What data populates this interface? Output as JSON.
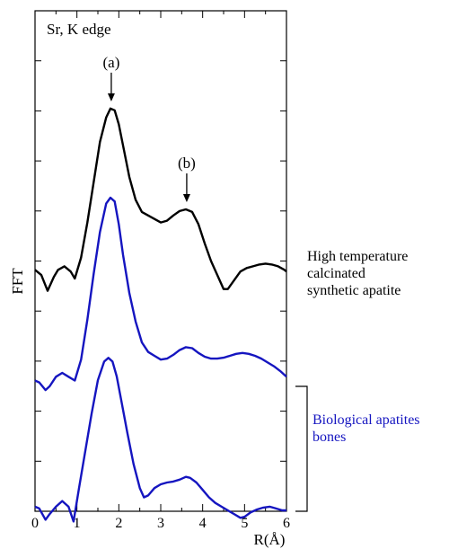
{
  "chart_data": {
    "type": "line",
    "title": "",
    "xlabel": "R(Å)",
    "ylabel": "FFT",
    "xlim": [
      0,
      6
    ],
    "xticks": [
      "0",
      "1",
      "2",
      "3",
      "4",
      "5",
      "6"
    ],
    "y_tick_count": 10,
    "y_values_shown": false,
    "grid": false,
    "panel_label": "Sr, K edge",
    "peak_annotations": [
      {
        "label": "(a)",
        "x": 1.82,
        "target_series": 0
      },
      {
        "label": "(b)",
        "x": 3.62,
        "target_series": 0
      }
    ],
    "series_labels": [
      {
        "text_lines": [
          "High temperature",
          "calcinated",
          "synthetic apatite"
        ],
        "color": "#000000",
        "series": [
          0
        ]
      },
      {
        "text_lines": [
          "Biological apatites",
          "bones"
        ],
        "color": "#1515c0",
        "series": [
          1,
          2
        ],
        "bracket": true
      }
    ],
    "series": [
      {
        "color": "#000000",
        "points": [
          [
            0,
            0.05
          ],
          [
            0.15,
            0.02
          ],
          [
            0.3,
            -0.07
          ],
          [
            0.45,
            0.01
          ],
          [
            0.55,
            0.05
          ],
          [
            0.7,
            0.07
          ],
          [
            0.85,
            0.04
          ],
          [
            0.95,
            0.0
          ],
          [
            1.1,
            0.12
          ],
          [
            1.25,
            0.32
          ],
          [
            1.4,
            0.55
          ],
          [
            1.55,
            0.78
          ],
          [
            1.7,
            0.92
          ],
          [
            1.8,
            0.97
          ],
          [
            1.9,
            0.96
          ],
          [
            2.0,
            0.88
          ],
          [
            2.1,
            0.76
          ],
          [
            2.25,
            0.58
          ],
          [
            2.4,
            0.45
          ],
          [
            2.55,
            0.38
          ],
          [
            2.7,
            0.36
          ],
          [
            2.85,
            0.34
          ],
          [
            3.0,
            0.32
          ],
          [
            3.15,
            0.33
          ],
          [
            3.3,
            0.36
          ],
          [
            3.45,
            0.385
          ],
          [
            3.6,
            0.395
          ],
          [
            3.75,
            0.38
          ],
          [
            3.9,
            0.31
          ],
          [
            4.05,
            0.2
          ],
          [
            4.2,
            0.1
          ],
          [
            4.35,
            0.02
          ],
          [
            4.5,
            -0.06
          ],
          [
            4.6,
            -0.06
          ],
          [
            4.75,
            -0.01
          ],
          [
            4.9,
            0.04
          ],
          [
            5.05,
            0.06
          ],
          [
            5.2,
            0.07
          ],
          [
            5.35,
            0.08
          ],
          [
            5.5,
            0.085
          ],
          [
            5.65,
            0.08
          ],
          [
            5.8,
            0.07
          ],
          [
            5.95,
            0.05
          ],
          [
            6.0,
            0.04
          ]
        ]
      },
      {
        "color": "#1515c0",
        "points": [
          [
            0,
            0.04
          ],
          [
            0.1,
            0.03
          ],
          [
            0.25,
            -0.01
          ],
          [
            0.35,
            0.01
          ],
          [
            0.5,
            0.06
          ],
          [
            0.65,
            0.08
          ],
          [
            0.8,
            0.06
          ],
          [
            0.95,
            0.04
          ],
          [
            1.1,
            0.15
          ],
          [
            1.25,
            0.36
          ],
          [
            1.4,
            0.6
          ],
          [
            1.55,
            0.82
          ],
          [
            1.7,
            0.97
          ],
          [
            1.8,
            1.0
          ],
          [
            1.9,
            0.98
          ],
          [
            2.0,
            0.86
          ],
          [
            2.1,
            0.7
          ],
          [
            2.25,
            0.5
          ],
          [
            2.4,
            0.35
          ],
          [
            2.55,
            0.24
          ],
          [
            2.7,
            0.19
          ],
          [
            2.85,
            0.17
          ],
          [
            3.0,
            0.15
          ],
          [
            3.15,
            0.155
          ],
          [
            3.3,
            0.175
          ],
          [
            3.45,
            0.2
          ],
          [
            3.6,
            0.215
          ],
          [
            3.75,
            0.21
          ],
          [
            3.9,
            0.185
          ],
          [
            4.05,
            0.165
          ],
          [
            4.2,
            0.155
          ],
          [
            4.35,
            0.155
          ],
          [
            4.5,
            0.16
          ],
          [
            4.65,
            0.17
          ],
          [
            4.8,
            0.18
          ],
          [
            4.95,
            0.185
          ],
          [
            5.1,
            0.18
          ],
          [
            5.25,
            0.17
          ],
          [
            5.4,
            0.155
          ],
          [
            5.55,
            0.135
          ],
          [
            5.7,
            0.115
          ],
          [
            5.85,
            0.09
          ],
          [
            6.0,
            0.06
          ]
        ]
      },
      {
        "color": "#1515c0",
        "points": [
          [
            0,
            0.02
          ],
          [
            0.1,
            0.01
          ],
          [
            0.25,
            -0.05
          ],
          [
            0.35,
            -0.02
          ],
          [
            0.5,
            0.02
          ],
          [
            0.65,
            0.05
          ],
          [
            0.8,
            0.02
          ],
          [
            0.92,
            -0.06
          ],
          [
            1.05,
            0.12
          ],
          [
            1.2,
            0.32
          ],
          [
            1.35,
            0.52
          ],
          [
            1.5,
            0.7
          ],
          [
            1.65,
            0.8
          ],
          [
            1.75,
            0.82
          ],
          [
            1.85,
            0.8
          ],
          [
            1.95,
            0.72
          ],
          [
            2.05,
            0.6
          ],
          [
            2.2,
            0.42
          ],
          [
            2.35,
            0.25
          ],
          [
            2.5,
            0.12
          ],
          [
            2.6,
            0.07
          ],
          [
            2.7,
            0.08
          ],
          [
            2.85,
            0.12
          ],
          [
            3.0,
            0.14
          ],
          [
            3.15,
            0.15
          ],
          [
            3.3,
            0.155
          ],
          [
            3.45,
            0.165
          ],
          [
            3.6,
            0.18
          ],
          [
            3.7,
            0.175
          ],
          [
            3.85,
            0.15
          ],
          [
            4.0,
            0.11
          ],
          [
            4.15,
            0.07
          ],
          [
            4.3,
            0.04
          ],
          [
            4.45,
            0.02
          ],
          [
            4.6,
            0.0
          ],
          [
            4.75,
            -0.02
          ],
          [
            4.9,
            -0.04
          ],
          [
            5.0,
            -0.035
          ],
          [
            5.15,
            -0.01
          ],
          [
            5.3,
            0.005
          ],
          [
            5.45,
            0.015
          ],
          [
            5.6,
            0.02
          ],
          [
            5.75,
            0.01
          ],
          [
            5.9,
            0.0
          ],
          [
            6.0,
            0.0
          ]
        ]
      }
    ]
  }
}
